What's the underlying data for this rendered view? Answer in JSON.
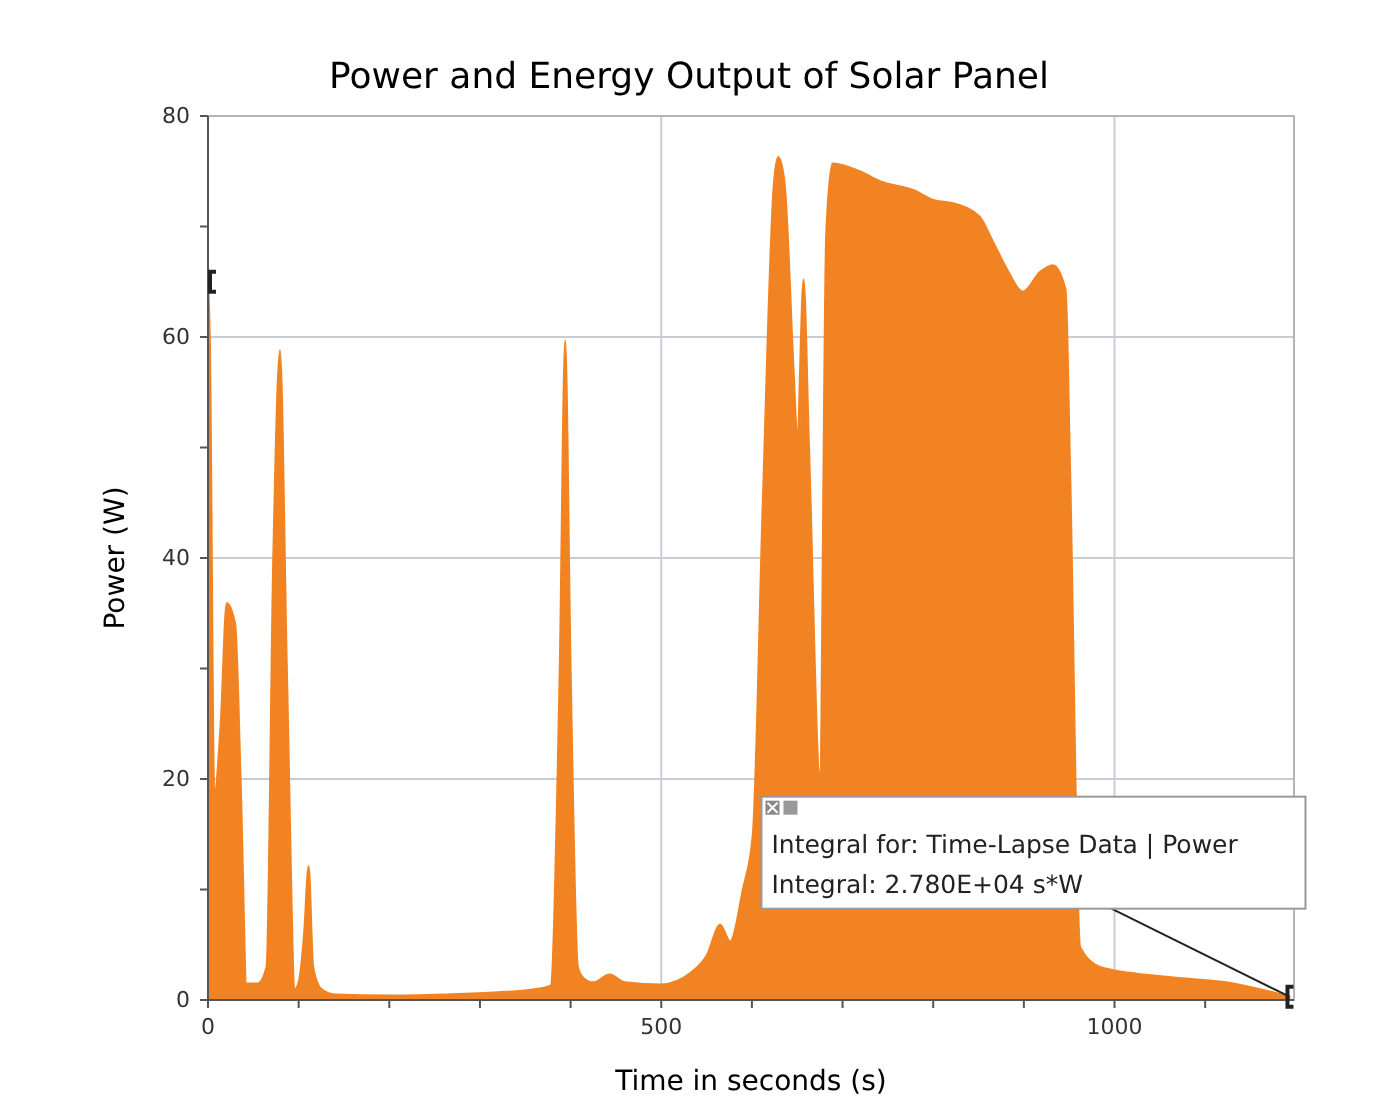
{
  "chart_data": {
    "type": "area",
    "title": "Power and Energy Output of Solar Panel",
    "xlabel": "Time in seconds (s)",
    "ylabel": "Power (W)",
    "x": [
      0,
      2,
      7,
      14,
      20.6,
      30,
      36,
      42.6,
      55,
      64.6,
      72,
      79.4,
      87,
      96,
      101,
      106,
      111,
      116,
      125,
      140,
      200,
      260,
      320,
      362,
      378,
      388,
      394,
      400,
      408,
      414,
      425,
      443,
      460,
      500,
      533,
      550,
      565,
      576,
      590,
      601,
      612,
      624,
      629,
      636,
      646,
      650,
      657,
      663,
      675,
      682,
      689,
      719,
      741,
      778,
      800,
      822,
      851,
      866,
      881,
      899,
      918,
      932,
      946,
      951,
      955,
      962,
      984,
      1057,
      1131,
      1193
    ],
    "series": [
      {
        "color": "#f28322",
        "values": [
          65,
          60,
          18.6,
          25,
          35.9,
          34,
          20,
          1.5,
          1.5,
          3,
          40,
          58.8,
          30,
          1,
          2,
          6,
          12.1,
          3,
          1,
          0.5,
          0.4,
          0.5,
          0.7,
          1,
          1.3,
          30,
          59.7,
          30,
          3,
          2,
          1.6,
          2.3,
          1.6,
          1.4,
          2.5,
          4,
          6.8,
          5.3,
          10,
          15,
          45,
          73.6,
          76.3,
          74,
          57,
          51,
          65.2,
          50,
          20.5,
          69.4,
          75.7,
          75,
          74.1,
          73.3,
          72.4,
          72.1,
          70.9,
          68.6,
          66.2,
          64.1,
          65.9,
          66.5,
          64.3,
          48,
          null,
          4.8,
          3,
          2.1,
          1.5,
          0.3
        ]
      }
    ],
    "xlim": [
      0,
      1198
    ],
    "ylim": [
      0,
      80
    ],
    "xticks": [
      0,
      {
        "value": 100,
        "label": null
      },
      {
        "value": 200,
        "label": null
      },
      {
        "value": 300,
        "label": null
      },
      {
        "value": 400,
        "label": null
      },
      500,
      {
        "value": 600,
        "label": null
      },
      {
        "value": 700,
        "label": null
      },
      {
        "value": 800,
        "label": null
      },
      {
        "value": 900,
        "label": null
      },
      1000,
      {
        "value": 1100,
        "label": null
      }
    ],
    "yticks": [
      0,
      {
        "value": 10,
        "label": null
      },
      20,
      {
        "value": 30,
        "label": null
      },
      40,
      {
        "value": 50,
        "label": null
      },
      60,
      {
        "value": 70,
        "label": null
      },
      80
    ],
    "grid": true,
    "annotations": [
      {
        "text": "Integral for: Time-Lapse Data | Power\nIntegral: 2.780E+04 s*W",
        "x": 1193,
        "y": 0.3
      }
    ]
  }
}
